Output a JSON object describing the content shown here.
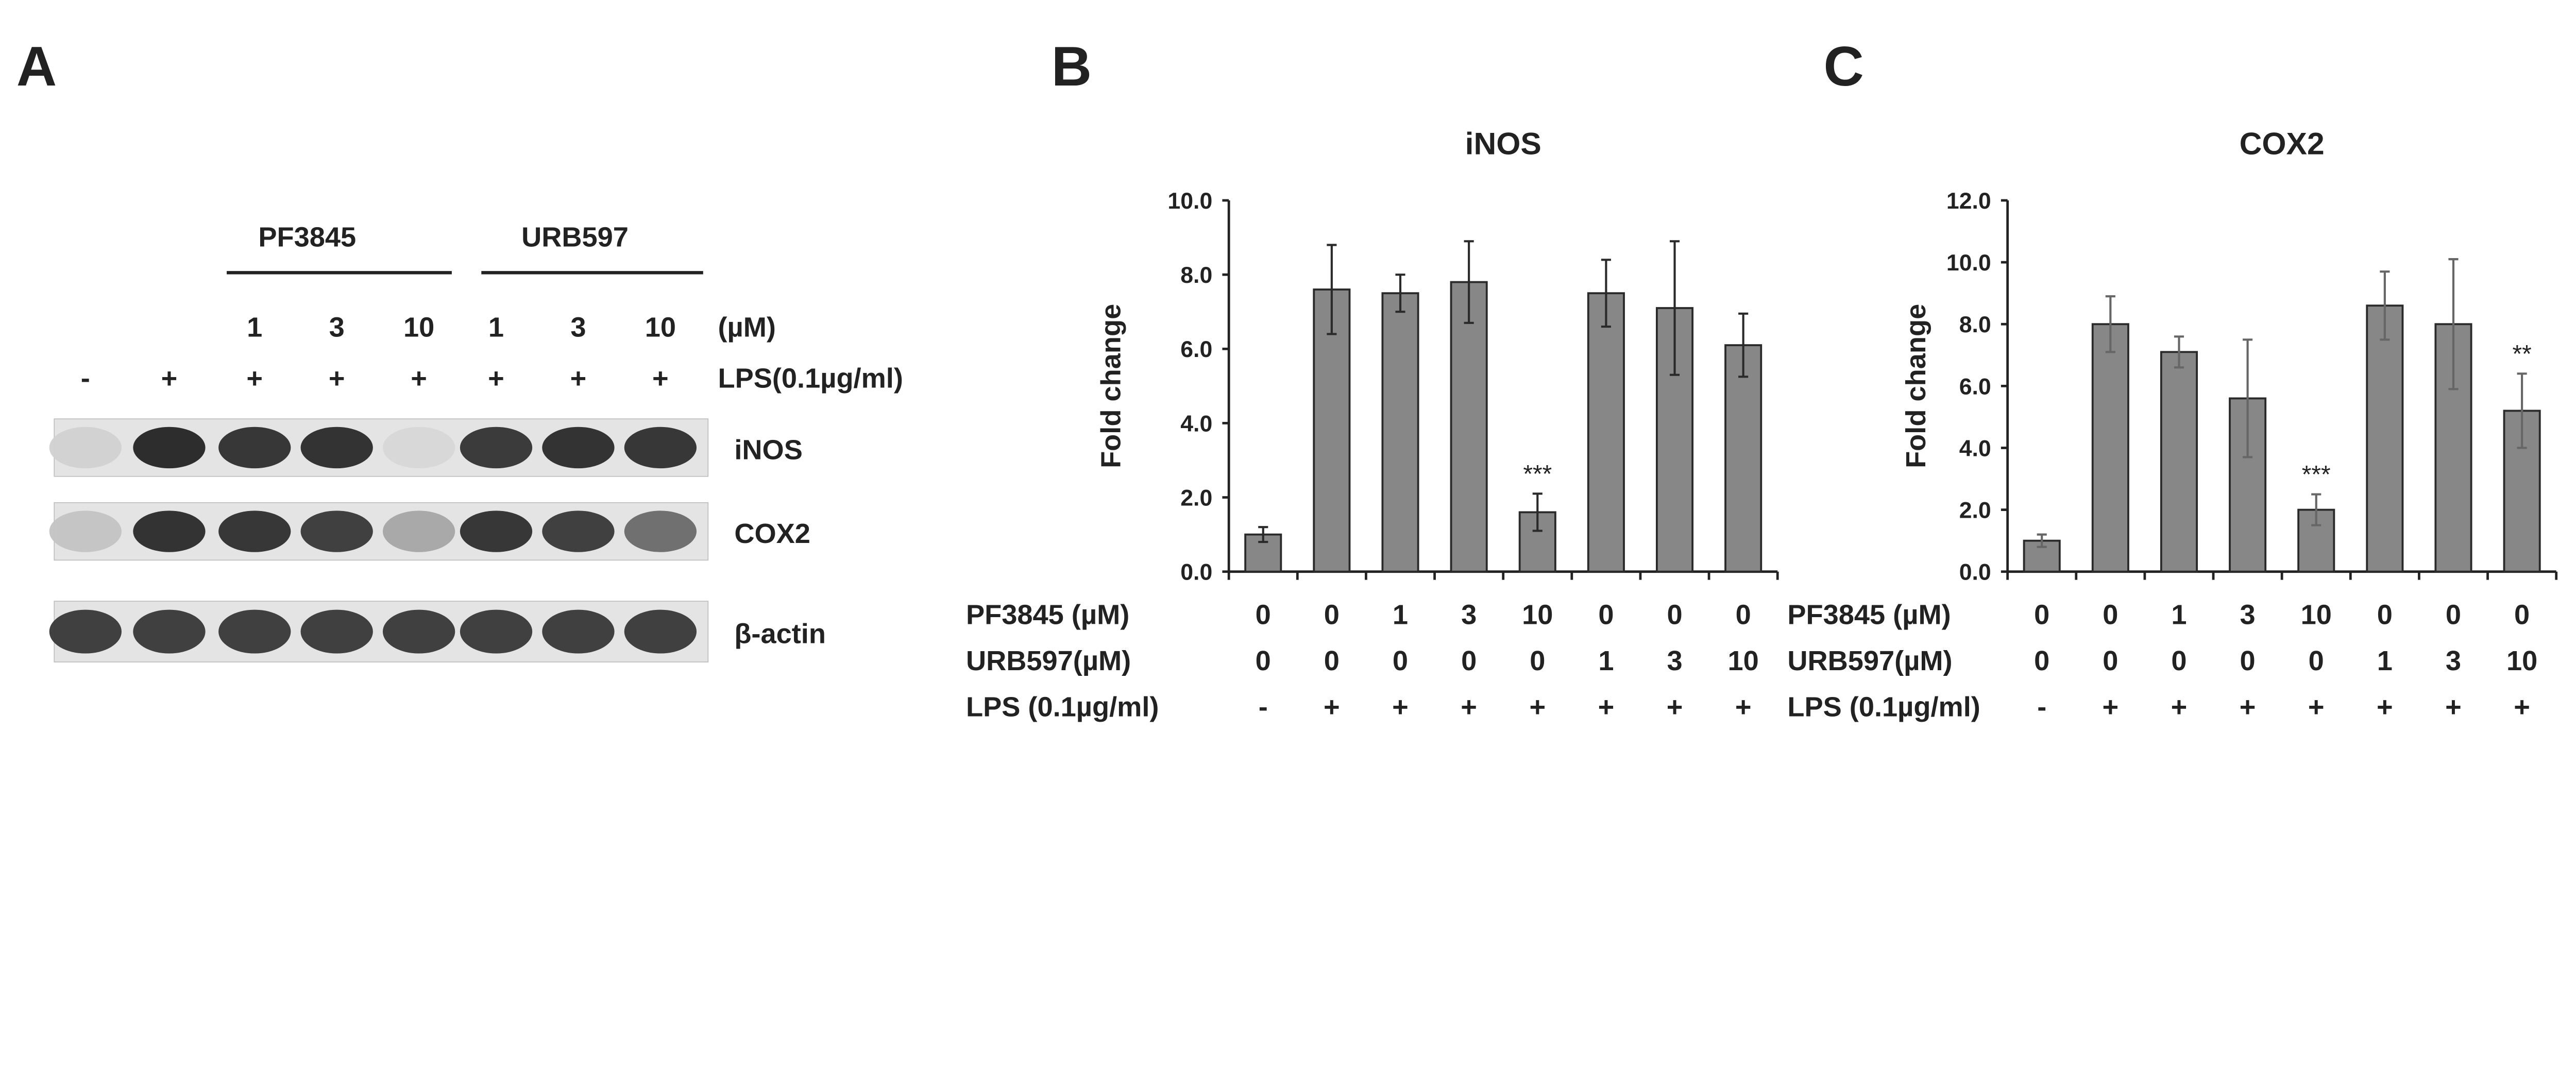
{
  "panelA": {
    "label": "A",
    "groups": [
      {
        "name": "PF3845"
      },
      {
        "name": "URB597"
      }
    ],
    "dose_unit": "(µM)",
    "doses": [
      "1",
      "3",
      "10",
      "1",
      "3",
      "10"
    ],
    "lps_label": "LPS(0.1µg/ml)",
    "lps": [
      "-",
      "+",
      "+",
      "+",
      "+",
      "+",
      "+",
      "+"
    ],
    "blots": [
      {
        "name": "iNOS",
        "intensity": [
          0.08,
          0.95,
          0.9,
          0.92,
          0.05,
          0.88,
          0.92,
          0.9
        ]
      },
      {
        "name": "COX2",
        "intensity": [
          0.15,
          0.92,
          0.9,
          0.85,
          0.3,
          0.9,
          0.85,
          0.6
        ]
      },
      {
        "name": "β-actin",
        "intensity": [
          0.85,
          0.85,
          0.85,
          0.85,
          0.85,
          0.85,
          0.85,
          0.85
        ]
      }
    ]
  },
  "chart_data": [
    {
      "panel": "B",
      "type": "bar",
      "title": "iNOS",
      "ylabel": "Fold change",
      "ylim": [
        0,
        10
      ],
      "yticks": [
        "0.0",
        "2.0",
        "4.0",
        "6.0",
        "8.0",
        "10.0"
      ],
      "row_labels": [
        "PF3845 (µM)",
        "URB597(µM)",
        "LPS (0.1µg/ml)"
      ],
      "rows": [
        [
          "0",
          "0",
          "1",
          "3",
          "10",
          "0",
          "0",
          "0"
        ],
        [
          "0",
          "0",
          "0",
          "0",
          "0",
          "1",
          "3",
          "10"
        ],
        [
          "-",
          "+",
          "+",
          "+",
          "+",
          "+",
          "+",
          "+"
        ]
      ],
      "values": [
        1.0,
        7.6,
        7.5,
        7.8,
        1.6,
        7.5,
        7.1,
        6.1
      ],
      "errors": [
        0.2,
        1.2,
        0.5,
        1.1,
        0.5,
        0.9,
        1.8,
        0.85
      ],
      "annotations": [
        "",
        "",
        "",
        "",
        "***",
        "",
        "",
        ""
      ],
      "bar_color": "#878787"
    },
    {
      "panel": "C",
      "type": "bar",
      "title": "COX2",
      "ylabel": "Fold change",
      "ylim": [
        0,
        12
      ],
      "yticks": [
        "0.0",
        "2.0",
        "4.0",
        "6.0",
        "8.0",
        "10.0",
        "12.0"
      ],
      "row_labels": [
        "PF3845 (µM)",
        "URB597(µM)",
        "LPS (0.1µg/ml)"
      ],
      "rows": [
        [
          "0",
          "0",
          "1",
          "3",
          "10",
          "0",
          "0",
          "0"
        ],
        [
          "0",
          "0",
          "0",
          "0",
          "0",
          "1",
          "3",
          "10"
        ],
        [
          "-",
          "+",
          "+",
          "+",
          "+",
          "+",
          "+",
          "+"
        ]
      ],
      "values": [
        1.0,
        8.0,
        7.1,
        5.6,
        2.0,
        8.6,
        8.0,
        5.2
      ],
      "errors": [
        0.2,
        0.9,
        0.5,
        1.9,
        0.5,
        1.1,
        2.1,
        1.2
      ],
      "annotations": [
        "",
        "",
        "",
        "",
        "***",
        "",
        "",
        "**"
      ],
      "bar_color": "#878787"
    }
  ]
}
